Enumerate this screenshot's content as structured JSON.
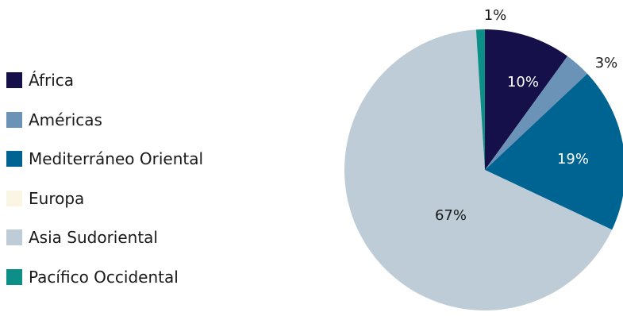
{
  "chart_data": {
    "type": "pie",
    "categories": [
      "África",
      "Américas",
      "Mediterráneo Oriental",
      "Europa",
      "Asia Sudoriental",
      "Pacífico Occidental"
    ],
    "values": [
      10,
      3,
      19,
      0,
      67,
      1
    ],
    "data_labels": [
      "10%",
      "3%",
      "19%",
      "",
      "67%",
      "1%"
    ],
    "colors": [
      "#15104a",
      "#6b93b8",
      "#006492",
      "#fbf5e4",
      "#bdccd6",
      "#0b8f87"
    ],
    "start_angle_deg": 0,
    "direction": "clockwise",
    "legend_position": "left",
    "title": "",
    "label_colors": [
      "#ffffff",
      "#1a1a1a",
      "#ffffff",
      "#1a1a1a",
      "#1a1a1a",
      "#1a1a1a"
    ]
  }
}
